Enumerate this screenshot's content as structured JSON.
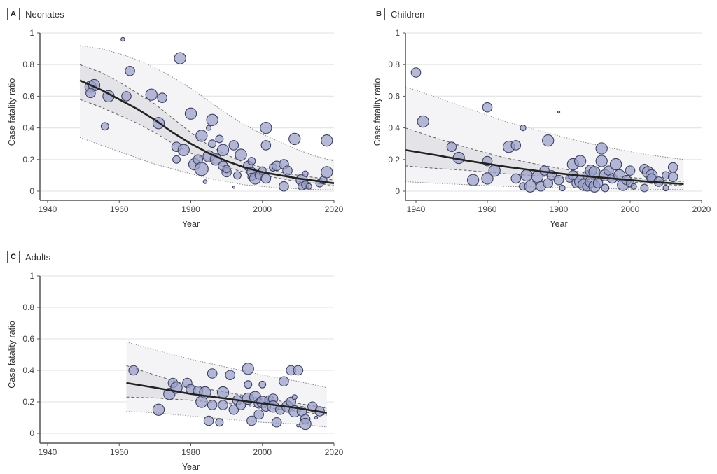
{
  "colors": {
    "point_fill": "#9aa0c8",
    "point_stroke": "#3c4060",
    "fit_line": "#222222",
    "ci_band": "#e4e4e8",
    "pi_band": "#f4f4f7",
    "grid": "#e6e6e6",
    "axis": "#555555"
  },
  "chart_data": [
    {
      "id": "A",
      "letter": "A",
      "title": "Neonates",
      "type": "scatter",
      "xlabel": "Year",
      "ylabel": "Case fatality ratio",
      "xlim": [
        1937,
        2020
      ],
      "ylim": [
        -0.06,
        1
      ],
      "xticks": [
        "1940",
        "1960",
        "1980",
        "2000",
        "2020"
      ],
      "yticks": [
        "0",
        "0.2",
        "0.4",
        "0.6",
        "0.8",
        "1"
      ],
      "grid": true,
      "fit": {
        "x": [
          1949,
          1955,
          1960,
          1965,
          1970,
          1975,
          1980,
          1985,
          1990,
          1995,
          2000,
          2005,
          2010,
          2015,
          2020
        ],
        "y": [
          0.7,
          0.64,
          0.58,
          0.52,
          0.45,
          0.37,
          0.3,
          0.24,
          0.19,
          0.15,
          0.12,
          0.1,
          0.08,
          0.065,
          0.05
        ],
        "ci_low": [
          0.58,
          0.53,
          0.48,
          0.43,
          0.37,
          0.3,
          0.24,
          0.19,
          0.15,
          0.12,
          0.1,
          0.08,
          0.06,
          0.05,
          0.035
        ],
        "ci_high": [
          0.8,
          0.75,
          0.69,
          0.62,
          0.55,
          0.46,
          0.37,
          0.29,
          0.23,
          0.18,
          0.15,
          0.12,
          0.1,
          0.085,
          0.07
        ],
        "pi_low": [
          0.34,
          0.29,
          0.25,
          0.21,
          0.17,
          0.14,
          0.11,
          0.08,
          0.06,
          0.04,
          0.03,
          0.02,
          0.015,
          0.01,
          0.01
        ],
        "pi_high": [
          0.92,
          0.9,
          0.87,
          0.83,
          0.78,
          0.72,
          0.65,
          0.57,
          0.49,
          0.42,
          0.36,
          0.31,
          0.26,
          0.22,
          0.19
        ]
      },
      "points": [
        [
          1952,
          0.66,
          3
        ],
        [
          1953,
          0.67,
          3
        ],
        [
          1952,
          0.62,
          2.5
        ],
        [
          1956,
          0.41,
          2
        ],
        [
          1957,
          0.6,
          3
        ],
        [
          1961,
          0.96,
          1
        ],
        [
          1962,
          0.6,
          2.5
        ],
        [
          1963,
          0.76,
          2.5
        ],
        [
          1969,
          0.61,
          3
        ],
        [
          1971,
          0.43,
          3
        ],
        [
          1972,
          0.59,
          2.5
        ],
        [
          1977,
          0.84,
          3
        ],
        [
          1976,
          0.28,
          2.5
        ],
        [
          1976,
          0.2,
          2
        ],
        [
          1978,
          0.26,
          3
        ],
        [
          1980,
          0.49,
          3
        ],
        [
          1981,
          0.17,
          3
        ],
        [
          1982,
          0.2,
          2.5
        ],
        [
          1983,
          0.35,
          3
        ],
        [
          1983,
          0.14,
          3.5
        ],
        [
          1984,
          0.06,
          1
        ],
        [
          1985,
          0.22,
          3
        ],
        [
          1985,
          0.4,
          1.3
        ],
        [
          1986,
          0.45,
          3
        ],
        [
          1986,
          0.3,
          2
        ],
        [
          1987,
          0.2,
          3
        ],
        [
          1988,
          0.33,
          2
        ],
        [
          1989,
          0.26,
          3
        ],
        [
          1989,
          0.16,
          2.5
        ],
        [
          1990,
          0.12,
          2.5
        ],
        [
          1990,
          0.14,
          2
        ],
        [
          1992,
          0.29,
          2.5
        ],
        [
          1992,
          0.025,
          0.6
        ],
        [
          1993,
          0.1,
          2
        ],
        [
          1994,
          0.23,
          3
        ],
        [
          1996,
          0.16,
          2.5
        ],
        [
          1997,
          0.19,
          2
        ],
        [
          1997,
          0.12,
          2.5
        ],
        [
          1997,
          0.09,
          2
        ],
        [
          1998,
          0.08,
          3
        ],
        [
          1999,
          0.1,
          2
        ],
        [
          2000,
          0.13,
          2
        ],
        [
          2001,
          0.4,
          3
        ],
        [
          2001,
          0.29,
          2.5
        ],
        [
          2001,
          0.08,
          2.5
        ],
        [
          2003,
          0.15,
          2
        ],
        [
          2004,
          0.16,
          2.5
        ],
        [
          2006,
          0.17,
          2.5
        ],
        [
          2006,
          0.03,
          2.5
        ],
        [
          2007,
          0.13,
          2.5
        ],
        [
          2009,
          0.33,
          3
        ],
        [
          2011,
          0.07,
          3
        ],
        [
          2011,
          0.03,
          2
        ],
        [
          2012,
          0.11,
          1.5
        ],
        [
          2012,
          0.04,
          2
        ],
        [
          2013,
          0.03,
          1.5
        ],
        [
          2016,
          0.05,
          2
        ],
        [
          2017,
          0.07,
          2
        ],
        [
          2018,
          0.32,
          3
        ],
        [
          2018,
          0.12,
          3
        ]
      ]
    },
    {
      "id": "B",
      "letter": "B",
      "title": "Children",
      "type": "scatter",
      "xlabel": "Year",
      "ylabel": "Case fatality ratio",
      "xlim": [
        1937,
        2020
      ],
      "ylim": [
        -0.06,
        1
      ],
      "xticks": [
        "1940",
        "1960",
        "1980",
        "2000",
        "2020"
      ],
      "yticks": [
        "0",
        "0.2",
        "0.4",
        "0.6",
        "0.8",
        "1"
      ],
      "grid": true,
      "fit": {
        "x": [
          1937,
          1945,
          1955,
          1965,
          1975,
          1985,
          1995,
          2005,
          2015
        ],
        "y": [
          0.26,
          0.23,
          0.19,
          0.155,
          0.125,
          0.1,
          0.08,
          0.06,
          0.045
        ],
        "ci_low": [
          0.16,
          0.145,
          0.13,
          0.11,
          0.095,
          0.08,
          0.065,
          0.05,
          0.035
        ],
        "ci_high": [
          0.4,
          0.34,
          0.27,
          0.21,
          0.165,
          0.125,
          0.1,
          0.075,
          0.06
        ],
        "pi_low": [
          0.06,
          0.05,
          0.04,
          0.03,
          0.025,
          0.02,
          0.015,
          0.01,
          0.01
        ],
        "pi_high": [
          0.66,
          0.6,
          0.52,
          0.44,
          0.38,
          0.32,
          0.27,
          0.23,
          0.2
        ]
      },
      "points": [
        [
          1940,
          0.75,
          2.5
        ],
        [
          1942,
          0.44,
          3
        ],
        [
          1950,
          0.28,
          2.5
        ],
        [
          1952,
          0.21,
          3
        ],
        [
          1956,
          0.07,
          3
        ],
        [
          1960,
          0.53,
          2.5
        ],
        [
          1960,
          0.19,
          2.5
        ],
        [
          1960,
          0.08,
          3
        ],
        [
          1962,
          0.13,
          3
        ],
        [
          1966,
          0.28,
          3
        ],
        [
          1968,
          0.29,
          2.5
        ],
        [
          1968,
          0.08,
          2.5
        ],
        [
          1970,
          0.4,
          1.5
        ],
        [
          1970,
          0.03,
          2
        ],
        [
          1971,
          0.1,
          3
        ],
        [
          1972,
          0.03,
          3
        ],
        [
          1974,
          0.09,
          3
        ],
        [
          1975,
          0.03,
          2.5
        ],
        [
          1976,
          0.13,
          2.5
        ],
        [
          1977,
          0.32,
          3
        ],
        [
          1977,
          0.05,
          2.5
        ],
        [
          1978,
          0.1,
          2.5
        ],
        [
          1980,
          0.5,
          0.6
        ],
        [
          1980,
          0.07,
          2.5
        ],
        [
          1981,
          0.02,
          1.5
        ],
        [
          1983,
          0.08,
          2
        ],
        [
          1984,
          0.1,
          2.5
        ],
        [
          1984,
          0.17,
          3
        ],
        [
          1985,
          0.05,
          2.5
        ],
        [
          1986,
          0.19,
          3
        ],
        [
          1986,
          0.06,
          3
        ],
        [
          1987,
          0.04,
          3
        ],
        [
          1988,
          0.1,
          2.5
        ],
        [
          1988,
          0.03,
          2.5
        ],
        [
          1989,
          0.13,
          3
        ],
        [
          1989,
          0.06,
          3
        ],
        [
          1990,
          0.03,
          3
        ],
        [
          1990,
          0.12,
          3
        ],
        [
          1991,
          0.05,
          2.5
        ],
        [
          1992,
          0.27,
          3
        ],
        [
          1992,
          0.19,
          3
        ],
        [
          1993,
          0.1,
          3
        ],
        [
          1993,
          0.02,
          2
        ],
        [
          1994,
          0.13,
          2.5
        ],
        [
          1995,
          0.08,
          2.5
        ],
        [
          1996,
          0.17,
          3
        ],
        [
          1997,
          0.1,
          3
        ],
        [
          1998,
          0.04,
          3
        ],
        [
          1999,
          0.07,
          2.5
        ],
        [
          2000,
          0.13,
          2.5
        ],
        [
          2000,
          0.05,
          2
        ],
        [
          2001,
          0.03,
          1.5
        ],
        [
          2004,
          0.14,
          2.5
        ],
        [
          2004,
          0.02,
          2
        ],
        [
          2005,
          0.12,
          3
        ],
        [
          2006,
          0.1,
          3
        ],
        [
          2006,
          0.08,
          2.5
        ],
        [
          2008,
          0.06,
          2.5
        ],
        [
          2010,
          0.1,
          2
        ],
        [
          2010,
          0.02,
          1.5
        ],
        [
          2012,
          0.15,
          2.5
        ],
        [
          2012,
          0.09,
          2.5
        ]
      ]
    },
    {
      "id": "C",
      "letter": "C",
      "title": "Adults",
      "type": "scatter",
      "xlabel": "Year",
      "ylabel": "Case fatality ratio",
      "xlim": [
        1937,
        2020
      ],
      "ylim": [
        -0.06,
        1
      ],
      "xticks": [
        "1940",
        "1960",
        "1980",
        "2000",
        "2020"
      ],
      "yticks": [
        "0",
        "0.2",
        "0.4",
        "0.6",
        "0.8",
        "1"
      ],
      "grid": true,
      "fit": {
        "x": [
          1962,
          1970,
          1980,
          1990,
          2000,
          2010,
          2018
        ],
        "y": [
          0.32,
          0.29,
          0.25,
          0.22,
          0.19,
          0.16,
          0.13
        ],
        "ci_low": [
          0.23,
          0.225,
          0.21,
          0.19,
          0.165,
          0.14,
          0.115
        ],
        "ci_high": [
          0.43,
          0.37,
          0.3,
          0.26,
          0.22,
          0.19,
          0.16
        ],
        "pi_low": [
          0.14,
          0.13,
          0.11,
          0.09,
          0.07,
          0.06,
          0.04
        ],
        "pi_high": [
          0.58,
          0.53,
          0.47,
          0.42,
          0.37,
          0.33,
          0.29
        ]
      },
      "points": [
        [
          1964,
          0.4,
          2.5
        ],
        [
          1971,
          0.15,
          3
        ],
        [
          1974,
          0.25,
          3
        ],
        [
          1975,
          0.32,
          2.5
        ],
        [
          1976,
          0.29,
          3
        ],
        [
          1979,
          0.32,
          2.5
        ],
        [
          1980,
          0.28,
          2.5
        ],
        [
          1982,
          0.27,
          2.5
        ],
        [
          1983,
          0.2,
          3
        ],
        [
          1984,
          0.26,
          3
        ],
        [
          1985,
          0.08,
          2.5
        ],
        [
          1986,
          0.38,
          2.5
        ],
        [
          1986,
          0.18,
          2.5
        ],
        [
          1988,
          0.07,
          2
        ],
        [
          1989,
          0.26,
          3
        ],
        [
          1989,
          0.18,
          2.5
        ],
        [
          1991,
          0.37,
          2.5
        ],
        [
          1992,
          0.15,
          2.5
        ],
        [
          1993,
          0.21,
          2.5
        ],
        [
          1994,
          0.18,
          2.5
        ],
        [
          1996,
          0.41,
          3
        ],
        [
          1996,
          0.31,
          2
        ],
        [
          1996,
          0.22,
          3
        ],
        [
          1997,
          0.08,
          2.5
        ],
        [
          1998,
          0.23,
          3
        ],
        [
          1999,
          0.19,
          2.5
        ],
        [
          1999,
          0.12,
          2.5
        ],
        [
          2000,
          0.31,
          1.8
        ],
        [
          2000,
          0.2,
          3
        ],
        [
          2001,
          0.17,
          2.5
        ],
        [
          2002,
          0.21,
          2.5
        ],
        [
          2003,
          0.22,
          2.5
        ],
        [
          2003,
          0.17,
          3
        ],
        [
          2004,
          0.07,
          2.5
        ],
        [
          2005,
          0.15,
          2.5
        ],
        [
          2006,
          0.33,
          2.5
        ],
        [
          2007,
          0.17,
          3
        ],
        [
          2008,
          0.4,
          2.5
        ],
        [
          2008,
          0.2,
          2.5
        ],
        [
          2009,
          0.23,
          1.3
        ],
        [
          2009,
          0.14,
          3
        ],
        [
          2010,
          0.4,
          2.5
        ],
        [
          2010,
          0.05,
          0.8
        ],
        [
          2011,
          0.14,
          2.5
        ],
        [
          2012,
          0.09,
          2.5
        ],
        [
          2012,
          0.06,
          3
        ],
        [
          2014,
          0.17,
          2.5
        ],
        [
          2015,
          0.1,
          0.8
        ],
        [
          2016,
          0.14,
          2.5
        ]
      ]
    }
  ]
}
